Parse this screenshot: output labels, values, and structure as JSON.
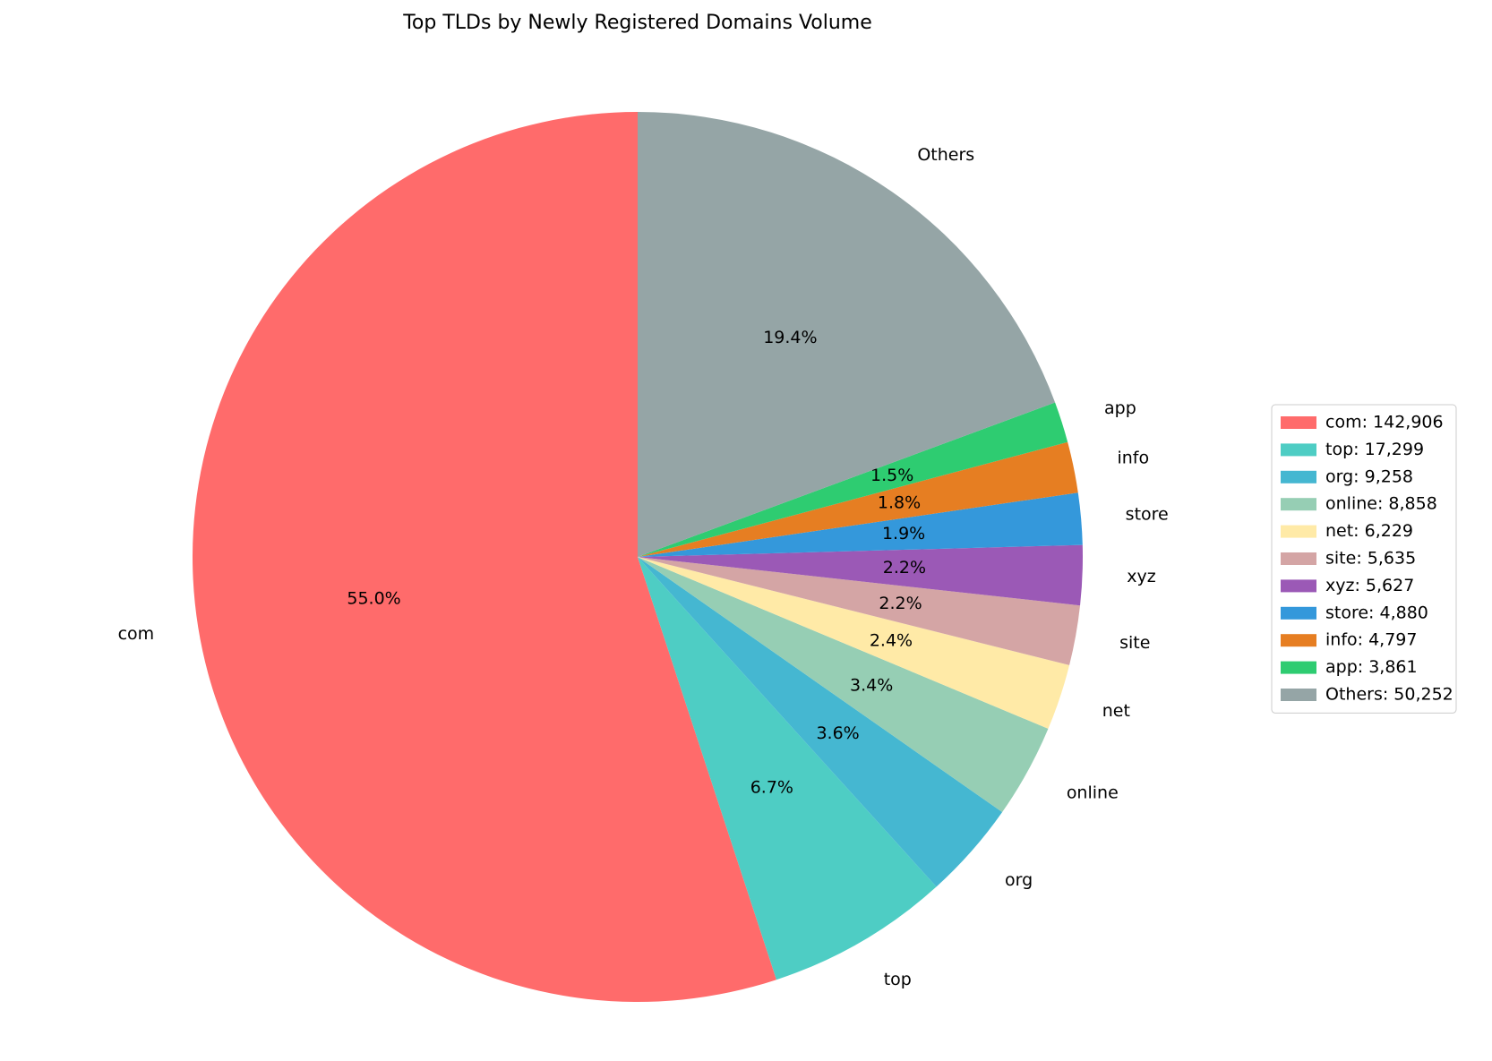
{
  "chart_data": {
    "type": "pie",
    "title": "Top TLDs by Newly Registered Domains Volume",
    "categories": [
      "com",
      "top",
      "org",
      "online",
      "net",
      "site",
      "xyz",
      "store",
      "info",
      "app",
      "Others"
    ],
    "values": [
      142906,
      17299,
      9258,
      8858,
      6229,
      5635,
      5627,
      4880,
      4797,
      3861,
      50252
    ],
    "percent_labels": [
      "55.0%",
      "6.7%",
      "3.6%",
      "3.4%",
      "2.4%",
      "2.2%",
      "2.2%",
      "1.9%",
      "1.8%",
      "1.5%",
      "19.4%"
    ],
    "legend_labels": [
      "com: 142,906",
      "top: 17,299",
      "org: 9,258",
      "online: 8,858",
      "net: 6,229",
      "site: 5,635",
      "xyz: 5,627",
      "store: 4,880",
      "info: 4,797",
      "app: 3,861",
      "Others: 50,252"
    ],
    "colors": [
      "#ff6b6b",
      "#4ecdc4",
      "#45b7d1",
      "#96ceb4",
      "#ffeaa7",
      "#d4a5a5",
      "#9b59b6",
      "#3498db",
      "#e67e22",
      "#2ecc71",
      "#95a5a6"
    ],
    "start_angle": 90,
    "legend_position": "right"
  }
}
